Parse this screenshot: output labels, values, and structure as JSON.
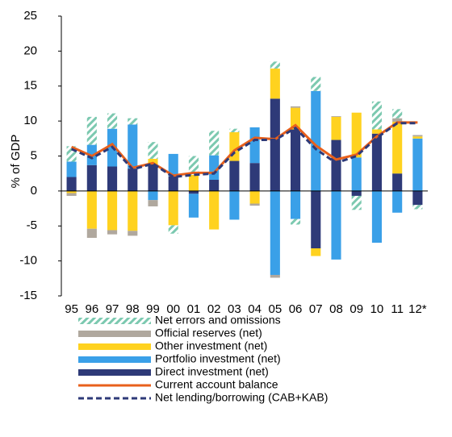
{
  "chart_data": {
    "type": "bar",
    "stacked": true,
    "y_label": "% of GDP",
    "categories": [
      "95",
      "96",
      "97",
      "98",
      "99",
      "00",
      "01",
      "02",
      "03",
      "04",
      "05",
      "06",
      "07",
      "08",
      "09",
      "10",
      "11",
      "12*"
    ],
    "ylim": [
      -15,
      25
    ],
    "yticks": [
      -15,
      -10,
      -5,
      0,
      5,
      10,
      15,
      20,
      25
    ],
    "series": [
      {
        "name": "Direct investment (net)",
        "color": "#2e3a78",
        "values": [
          2.0,
          3.7,
          3.5,
          3.2,
          3.8,
          2.1,
          -0.4,
          1.6,
          4.3,
          4.0,
          13.2,
          8.8,
          -8.2,
          7.3,
          -0.7,
          8.2,
          2.5,
          -2.0
        ]
      },
      {
        "name": "Portfolio investment (net)",
        "color": "#3aa0e8",
        "values": [
          2.2,
          2.9,
          5.4,
          6.3,
          -1.3,
          3.2,
          -3.4,
          3.5,
          -4.1,
          5.1,
          -12.0,
          -4.0,
          14.3,
          -9.8,
          4.8,
          -7.4,
          -3.1,
          7.5
        ]
      },
      {
        "name": "Other investment (net)",
        "color": "#ffd21f",
        "values": [
          -0.3,
          -5.4,
          -5.6,
          -5.7,
          0.8,
          -4.9,
          2.3,
          -5.5,
          4.1,
          -1.8,
          4.3,
          3.1,
          -1.1,
          3.3,
          6.4,
          0.6,
          7.4,
          0.3
        ]
      },
      {
        "name": "Official reserves (net)",
        "color": "#b0a89e",
        "values": [
          -0.4,
          -1.3,
          -0.6,
          -0.7,
          -0.9,
          0,
          0,
          0,
          0,
          -0.3,
          -0.4,
          0.2,
          0,
          0.1,
          0,
          0,
          0.5,
          0.2
        ]
      },
      {
        "name": "Net errors and omissions",
        "color": "#7cc9b0",
        "hatch": true,
        "values": [
          2.2,
          4.0,
          2.2,
          0.9,
          2.4,
          -1.2,
          2.7,
          3.5,
          0.5,
          0,
          1.0,
          -0.8,
          2.0,
          0,
          -2.0,
          4.0,
          1.3,
          -0.6
        ]
      },
      {
        "name": "Current account balance",
        "type": "line",
        "color": "#e8601c",
        "values": [
          6.3,
          5.0,
          6.7,
          3.3,
          4.0,
          2.2,
          2.6,
          2.6,
          5.8,
          7.6,
          7.4,
          9.4,
          6.5,
          4.5,
          5.2,
          7.8,
          9.8,
          9.8
        ]
      },
      {
        "name": "Net lending/borrowing (CAB+KAB)",
        "type": "line",
        "dashed": true,
        "color": "#2e3a78",
        "values": [
          6.0,
          4.7,
          6.3,
          3.1,
          3.9,
          2.0,
          2.3,
          2.5,
          5.5,
          7.3,
          7.3,
          9.0,
          6.0,
          4.0,
          5.0,
          7.6,
          9.7,
          9.7
        ]
      }
    ],
    "legend_order": [
      4,
      3,
      2,
      1,
      0,
      5,
      6
    ]
  }
}
